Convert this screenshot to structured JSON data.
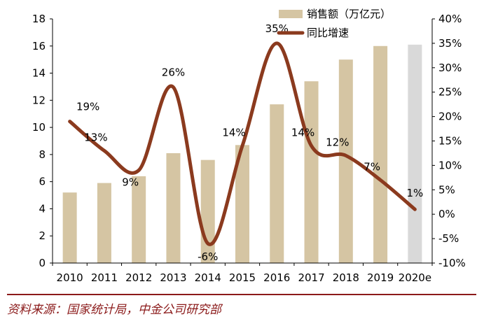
{
  "chart_data": {
    "type": "bar+line",
    "categories": [
      "2010",
      "2011",
      "2012",
      "2013",
      "2014",
      "2015",
      "2016",
      "2017",
      "2018",
      "2019",
      "2020e"
    ],
    "series": [
      {
        "name": "销售额（万亿元）",
        "type": "bar",
        "axis": "left",
        "values": [
          5.2,
          5.9,
          6.4,
          8.1,
          7.6,
          8.7,
          11.7,
          13.4,
          15.0,
          16.0,
          16.1
        ],
        "color": "#d5c5a3",
        "highlight_index": 10,
        "highlight_color": "#d9d9d9"
      },
      {
        "name": "同比增速",
        "type": "line",
        "axis": "right",
        "values": [
          19,
          13,
          9,
          26,
          -6,
          14,
          35,
          14,
          12,
          7,
          1
        ],
        "labels": [
          "19%",
          "13%",
          "9%",
          "26%",
          "-6%",
          "14%",
          "35%",
          "14%",
          "12%",
          "7%",
          "1%"
        ],
        "color": "#8b3a1e"
      }
    ],
    "y_left": {
      "min": 0,
      "max": 18,
      "ticks": [
        "0",
        "2",
        "4",
        "6",
        "8",
        "10",
        "12",
        "14",
        "16",
        "18"
      ]
    },
    "y_right": {
      "min": -10,
      "max": 40,
      "ticks": [
        "-10%",
        "-5%",
        "0%",
        "5%",
        "10%",
        "15%",
        "20%",
        "25%",
        "30%",
        "35%",
        "40%"
      ]
    },
    "legend": [
      {
        "label": "销售额（万亿元）",
        "kind": "bar"
      },
      {
        "label": "同比增速",
        "kind": "line"
      }
    ],
    "legend_position": "top-right",
    "grid": false
  },
  "source": "资料来源：国家统计局，中金公司研究部"
}
